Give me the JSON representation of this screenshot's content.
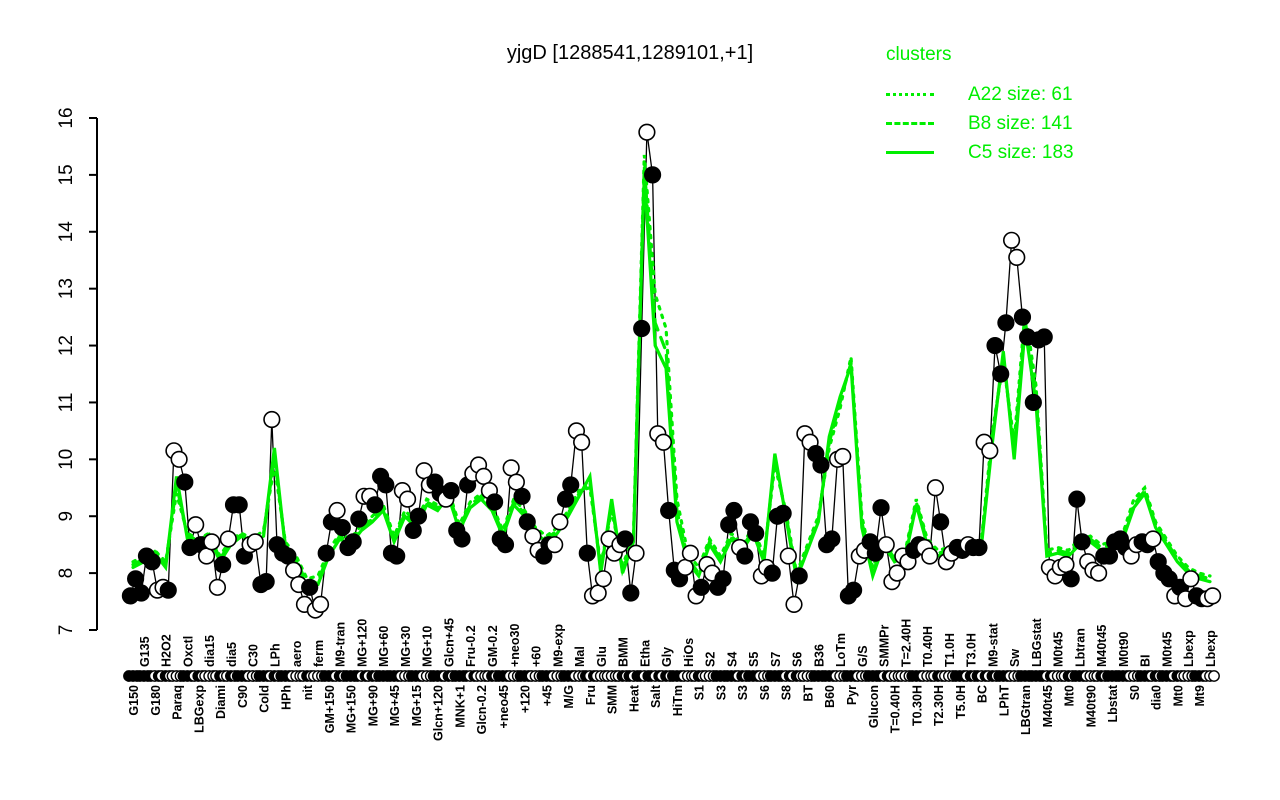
{
  "title": "yjgD [1288541,1289101,+1]",
  "colors": {
    "cluster_green": "#00ee00",
    "samples_black": "#000000",
    "background": "#ffffff"
  },
  "legend": {
    "title": "clusters",
    "entries": [
      {
        "label": "A22 size: 61",
        "style": "dotted"
      },
      {
        "label": "B8 size: 141",
        "style": "dashed"
      },
      {
        "label": "C5 size: 183",
        "style": "solid"
      }
    ]
  },
  "chart_data": {
    "type": "line",
    "title": "yjgD [1288541,1289101,+1]",
    "ylabel": "",
    "xlabel": "",
    "ylim": [
      7,
      16
    ],
    "yticks": [
      7,
      8,
      9,
      10,
      11,
      12,
      13,
      14,
      15,
      16
    ],
    "grid": false,
    "legend_position": "top-right",
    "conditions": [
      {
        "label": "G150",
        "side": "bottom"
      },
      {
        "label": "G135",
        "side": "top"
      },
      {
        "label": "G180",
        "side": "bottom"
      },
      {
        "label": "H2O2",
        "side": "top"
      },
      {
        "label": "Paraq",
        "side": "bottom"
      },
      {
        "label": "Oxctl",
        "side": "top"
      },
      {
        "label": "LBGexp",
        "side": "bottom"
      },
      {
        "label": "dia15",
        "side": "top"
      },
      {
        "label": "Diami",
        "side": "bottom"
      },
      {
        "label": "dia5",
        "side": "top"
      },
      {
        "label": "C90",
        "side": "bottom"
      },
      {
        "label": "C30",
        "side": "top"
      },
      {
        "label": "Cold",
        "side": "bottom"
      },
      {
        "label": "LPh",
        "side": "top"
      },
      {
        "label": "HPh",
        "side": "bottom"
      },
      {
        "label": "aero",
        "side": "top"
      },
      {
        "label": "nit",
        "side": "bottom"
      },
      {
        "label": "ferm",
        "side": "top"
      },
      {
        "label": "GM+150",
        "side": "bottom"
      },
      {
        "label": "M9-tran",
        "side": "top"
      },
      {
        "label": "MG+150",
        "side": "bottom"
      },
      {
        "label": "MG+120",
        "side": "top"
      },
      {
        "label": "MG+90",
        "side": "bottom"
      },
      {
        "label": "MG+60",
        "side": "top"
      },
      {
        "label": "MG+45",
        "side": "bottom"
      },
      {
        "label": "MG+30",
        "side": "top"
      },
      {
        "label": "MG+15",
        "side": "bottom"
      },
      {
        "label": "MG+10",
        "side": "top"
      },
      {
        "label": "Glcn+120",
        "side": "bottom"
      },
      {
        "label": "Glcn+45",
        "side": "top"
      },
      {
        "label": "MNK+1",
        "side": "bottom"
      },
      {
        "label": "Fru-0.2",
        "side": "top"
      },
      {
        "label": "Glcn-0.2",
        "side": "bottom"
      },
      {
        "label": "GM-0.2",
        "side": "top"
      },
      {
        "label": "+neo45",
        "side": "bottom"
      },
      {
        "label": "+neo30",
        "side": "top"
      },
      {
        "label": "+120",
        "side": "bottom"
      },
      {
        "label": "+60",
        "side": "top"
      },
      {
        "label": "+45",
        "side": "bottom"
      },
      {
        "label": "M9-exp",
        "side": "top"
      },
      {
        "label": "M/G",
        "side": "bottom"
      },
      {
        "label": "Mal",
        "side": "top"
      },
      {
        "label": "Fru",
        "side": "bottom"
      },
      {
        "label": "Glu",
        "side": "top"
      },
      {
        "label": "SMM",
        "side": "bottom"
      },
      {
        "label": "BMM",
        "side": "top"
      },
      {
        "label": "Heat",
        "side": "bottom"
      },
      {
        "label": "Etha",
        "side": "top"
      },
      {
        "label": "Salt",
        "side": "bottom"
      },
      {
        "label": "Gly",
        "side": "top"
      },
      {
        "label": "HiTm",
        "side": "bottom"
      },
      {
        "label": "HiOs",
        "side": "top"
      },
      {
        "label": "S1",
        "side": "bottom"
      },
      {
        "label": "S2",
        "side": "top"
      },
      {
        "label": "S3",
        "side": "bottom"
      },
      {
        "label": "S4",
        "side": "top"
      },
      {
        "label": "S3",
        "side": "bottom"
      },
      {
        "label": "S5",
        "side": "top"
      },
      {
        "label": "S6",
        "side": "bottom"
      },
      {
        "label": "S7",
        "side": "top"
      },
      {
        "label": "S8",
        "side": "bottom"
      },
      {
        "label": "S6",
        "side": "top"
      },
      {
        "label": "BT",
        "side": "bottom"
      },
      {
        "label": "B36",
        "side": "top"
      },
      {
        "label": "B60",
        "side": "bottom"
      },
      {
        "label": "LoTm",
        "side": "top"
      },
      {
        "label": "Pyr",
        "side": "bottom"
      },
      {
        "label": "G/S",
        "side": "top"
      },
      {
        "label": "Glucon",
        "side": "bottom"
      },
      {
        "label": "SMMPr",
        "side": "top"
      },
      {
        "label": "T=0.40H",
        "side": "bottom"
      },
      {
        "label": "T=2.40H",
        "side": "top"
      },
      {
        "label": "T0.30H",
        "side": "bottom"
      },
      {
        "label": "T0.40H",
        "side": "top"
      },
      {
        "label": "T2.30H",
        "side": "bottom"
      },
      {
        "label": "T1.0H",
        "side": "top"
      },
      {
        "label": "T5.0H",
        "side": "bottom"
      },
      {
        "label": "T3.0H",
        "side": "top"
      },
      {
        "label": "BC",
        "side": "bottom"
      },
      {
        "label": "M9-stat",
        "side": "top"
      },
      {
        "label": "LPhT",
        "side": "bottom"
      },
      {
        "label": "Sw",
        "side": "top"
      },
      {
        "label": "LBGtran",
        "side": "bottom"
      },
      {
        "label": "LBGstat",
        "side": "top"
      },
      {
        "label": "M40t45",
        "side": "bottom"
      },
      {
        "label": "M0t45",
        "side": "top"
      },
      {
        "label": "Mt0",
        "side": "bottom"
      },
      {
        "label": "Lbtran",
        "side": "top"
      },
      {
        "label": "M40t90",
        "side": "bottom"
      },
      {
        "label": "M40t45",
        "side": "top"
      },
      {
        "label": "Lbstat",
        "side": "bottom"
      },
      {
        "label": "M0t90",
        "side": "top"
      },
      {
        "label": "S0",
        "side": "bottom"
      },
      {
        "label": "BI",
        "side": "top"
      },
      {
        "label": "dia0",
        "side": "bottom"
      },
      {
        "label": "M0t45",
        "side": "top"
      },
      {
        "label": "Mt0",
        "side": "bottom"
      },
      {
        "label": "Lbexp",
        "side": "top"
      },
      {
        "label": "Mt9",
        "side": "bottom"
      },
      {
        "label": "Lbexp",
        "side": "top"
      }
    ],
    "samples": {
      "name": "expression samples (2 replicates per condition)",
      "marker_open": "white-filled circle",
      "marker_filled": "black-filled circle",
      "pairs": [
        [
          7.6,
          7.9
        ],
        [
          7.65,
          8.3
        ],
        [
          8.2,
          7.7
        ],
        [
          7.75,
          7.7
        ],
        [
          10.15,
          10.0
        ],
        [
          9.6,
          8.45
        ],
        [
          8.85,
          8.5
        ],
        [
          8.3,
          8.55
        ],
        [
          7.75,
          8.15
        ],
        [
          8.6,
          9.2
        ],
        [
          9.2,
          8.3
        ],
        [
          8.5,
          8.55
        ],
        [
          7.8,
          7.85
        ],
        [
          10.7,
          8.5
        ],
        [
          8.35,
          8.3
        ],
        [
          8.05,
          7.8
        ],
        [
          7.45,
          7.75
        ],
        [
          7.35,
          7.45
        ],
        [
          8.35,
          8.9
        ],
        [
          9.1,
          8.8
        ],
        [
          8.45,
          8.55
        ],
        [
          8.95,
          9.35
        ],
        [
          9.35,
          9.2
        ],
        [
          9.7,
          9.55
        ],
        [
          8.35,
          8.3
        ],
        [
          9.45,
          9.3
        ],
        [
          8.75,
          9.0
        ],
        [
          9.8,
          9.55
        ],
        [
          9.6,
          9.4
        ],
        [
          9.3,
          9.45
        ],
        [
          8.75,
          8.6
        ],
        [
          9.55,
          9.75
        ],
        [
          9.9,
          9.7
        ],
        [
          9.45,
          9.25
        ],
        [
          8.6,
          8.5
        ],
        [
          9.85,
          9.6
        ],
        [
          9.35,
          8.9
        ],
        [
          8.65,
          8.4
        ],
        [
          8.3,
          8.5
        ],
        [
          8.5,
          8.9
        ],
        [
          9.3,
          9.55
        ],
        [
          10.5,
          10.3
        ],
        [
          8.35,
          7.6
        ],
        [
          7.65,
          7.9
        ],
        [
          8.6,
          8.35
        ],
        [
          8.5,
          8.6
        ],
        [
          7.65,
          8.35
        ],
        [
          12.3,
          15.75
        ],
        [
          15.0,
          10.45
        ],
        [
          10.3,
          9.1
        ],
        [
          8.05,
          7.9
        ],
        [
          8.1,
          8.35
        ],
        [
          7.6,
          7.75
        ],
        [
          8.15,
          8.0
        ],
        [
          7.75,
          7.9
        ],
        [
          8.85,
          9.1
        ],
        [
          8.45,
          8.3
        ],
        [
          8.9,
          8.7
        ],
        [
          7.95,
          8.1
        ],
        [
          8.0,
          9.0
        ],
        [
          9.05,
          8.3
        ],
        [
          7.45,
          7.95
        ],
        [
          10.45,
          10.3
        ],
        [
          10.1,
          9.9
        ],
        [
          8.5,
          8.6
        ],
        [
          10.0,
          10.05
        ],
        [
          7.6,
          7.7
        ],
        [
          8.3,
          8.4
        ],
        [
          8.55,
          8.35
        ],
        [
          9.15,
          8.5
        ],
        [
          7.85,
          8.0
        ],
        [
          8.3,
          8.2
        ],
        [
          8.4,
          8.5
        ],
        [
          8.45,
          8.3
        ],
        [
          9.5,
          8.9
        ],
        [
          8.2,
          8.35
        ],
        [
          8.45,
          8.4
        ],
        [
          8.5,
          8.45
        ],
        [
          8.45,
          10.3
        ],
        [
          10.15,
          12.0
        ],
        [
          11.5,
          12.4
        ],
        [
          13.85,
          13.55
        ],
        [
          12.5,
          12.15
        ],
        [
          11.0,
          12.1
        ],
        [
          12.15,
          8.1
        ],
        [
          7.95,
          8.1
        ],
        [
          8.15,
          7.9
        ],
        [
          9.3,
          8.55
        ],
        [
          8.2,
          8.05
        ],
        [
          8.0,
          8.3
        ],
        [
          8.3,
          8.55
        ],
        [
          8.6,
          8.45
        ],
        [
          8.3,
          8.5
        ],
        [
          8.55,
          8.5
        ],
        [
          8.6,
          8.2
        ],
        [
          8.0,
          7.9
        ],
        [
          7.6,
          7.75
        ],
        [
          7.55,
          7.9
        ],
        [
          7.6,
          7.55
        ],
        [
          7.55,
          7.6
        ]
      ],
      "markers": [
        "ff",
        "ff",
        "fo",
        "of",
        "oo",
        "ff",
        "of",
        "oo",
        "of",
        "of",
        "ff",
        "oo",
        "ff",
        "of",
        "ff",
        "oo",
        "of",
        "oo",
        "ff",
        "of",
        "ff",
        "fo",
        "of",
        "ff",
        "ff",
        "oo",
        "ff",
        "oo",
        "ff",
        "of",
        "ff",
        "fo",
        "oo",
        "of",
        "ff",
        "oo",
        "ff",
        "oo",
        "ff",
        "oo",
        "ff",
        "oo",
        "fo",
        "oo",
        "oo",
        "of",
        "fo",
        "fo",
        "fo",
        "of",
        "ff",
        "oo",
        "of",
        "oo",
        "ff",
        "ff",
        "of",
        "ff",
        "oo",
        "ff",
        "fo",
        "of",
        "oo",
        "ff",
        "ff",
        "oo",
        "ff",
        "oo",
        "ff",
        "fo",
        "oo",
        "oo",
        "ff",
        "oo",
        "of",
        "oo",
        "ff",
        "of",
        "fo",
        "of",
        "ff",
        "oo",
        "ff",
        "ff",
        "fo",
        "oo",
        "of",
        "ff",
        "oo",
        "of",
        "ff",
        "ff",
        "oo",
        "ff",
        "of",
        "ff",
        "of",
        "oo",
        "ff",
        "oo"
      ]
    },
    "series": [
      {
        "name": "A22 size: 61",
        "cluster": "A22",
        "size": 61,
        "style": "dotted",
        "color": "#00ee00",
        "values": [
          8.2,
          8.3,
          8.4,
          8.2,
          9.4,
          8.7,
          8.6,
          8.7,
          8.3,
          8.6,
          8.7,
          8.6,
          8.75,
          9.9,
          8.55,
          8.3,
          7.9,
          7.95,
          8.4,
          8.7,
          8.6,
          8.85,
          9.0,
          9.2,
          8.65,
          9.1,
          8.9,
          9.3,
          9.2,
          9.45,
          8.85,
          9.25,
          9.4,
          9.2,
          8.75,
          9.3,
          9.1,
          8.8,
          8.65,
          8.8,
          9.1,
          9.45,
          9.5,
          8.15,
          9.1,
          8.15,
          8.6,
          15.35,
          12.9,
          12.3,
          9.3,
          8.35,
          8.1,
          8.6,
          8.3,
          8.7,
          8.5,
          8.8,
          8.3,
          9.9,
          9.1,
          8.0,
          8.5,
          9.0,
          10.2,
          10.9,
          11.8,
          9.0,
          8.1,
          8.6,
          8.3,
          8.4,
          9.3,
          8.6,
          8.4,
          8.45,
          8.4,
          8.5,
          8.6,
          10.5,
          11.7,
          10.3,
          12.6,
          11.3,
          8.4,
          8.45,
          8.4,
          8.6,
          8.65,
          8.5,
          8.55,
          8.7,
          9.3,
          9.5,
          8.9,
          8.6,
          8.3,
          8.1,
          8.0,
          7.95
        ]
      },
      {
        "name": "B8 size: 141",
        "cluster": "B8",
        "size": 141,
        "style": "dashed",
        "color": "#00ee00",
        "values": [
          8.15,
          8.25,
          8.38,
          8.15,
          9.55,
          8.65,
          8.58,
          8.68,
          8.25,
          8.55,
          8.68,
          8.58,
          8.7,
          10.05,
          8.5,
          8.25,
          7.8,
          7.85,
          8.35,
          8.65,
          8.55,
          8.8,
          8.95,
          9.15,
          8.6,
          9.05,
          8.85,
          9.25,
          9.15,
          9.4,
          8.8,
          9.2,
          9.35,
          9.15,
          8.7,
          9.25,
          9.05,
          8.75,
          8.6,
          8.75,
          9.05,
          9.4,
          9.6,
          8.05,
          9.2,
          8.05,
          8.58,
          15.15,
          12.4,
          11.9,
          9.1,
          8.25,
          8.0,
          8.55,
          8.25,
          8.65,
          8.45,
          8.75,
          8.25,
          10.0,
          9.05,
          7.95,
          8.45,
          8.95,
          10.3,
          11.0,
          11.7,
          8.9,
          8.0,
          8.55,
          8.25,
          8.35,
          9.25,
          8.55,
          8.35,
          8.4,
          8.35,
          8.45,
          8.55,
          10.4,
          11.8,
          10.15,
          12.45,
          11.15,
          8.35,
          8.4,
          8.35,
          8.55,
          8.6,
          8.45,
          8.5,
          8.65,
          9.2,
          9.45,
          8.85,
          8.55,
          8.25,
          8.05,
          7.95,
          7.9
        ]
      },
      {
        "name": "C5 size: 183",
        "cluster": "C5",
        "size": 183,
        "style": "solid",
        "color": "#00ee00",
        "values": [
          8.1,
          8.2,
          8.35,
          8.1,
          9.7,
          8.6,
          8.55,
          8.65,
          8.2,
          8.5,
          8.65,
          8.55,
          8.65,
          10.2,
          8.45,
          8.2,
          7.75,
          7.8,
          8.3,
          8.6,
          8.5,
          8.75,
          8.9,
          9.1,
          8.55,
          9.0,
          8.8,
          9.2,
          9.1,
          9.35,
          8.75,
          9.15,
          9.3,
          9.1,
          8.65,
          9.2,
          9.0,
          8.7,
          8.55,
          8.7,
          9.0,
          9.35,
          9.7,
          8.0,
          9.3,
          8.0,
          8.55,
          15.0,
          12.0,
          11.6,
          8.9,
          8.2,
          7.95,
          8.5,
          8.2,
          8.6,
          8.4,
          8.7,
          8.2,
          10.1,
          9.0,
          7.9,
          8.4,
          8.9,
          10.4,
          11.1,
          11.65,
          8.8,
          7.95,
          8.5,
          8.2,
          8.3,
          9.2,
          8.5,
          8.3,
          8.35,
          8.3,
          8.4,
          8.5,
          10.3,
          11.9,
          10.0,
          12.3,
          11.0,
          8.3,
          8.35,
          8.3,
          8.5,
          8.55,
          8.4,
          8.45,
          8.6,
          9.15,
          9.4,
          8.8,
          8.5,
          8.2,
          8.0,
          7.9,
          7.85
        ]
      }
    ]
  }
}
